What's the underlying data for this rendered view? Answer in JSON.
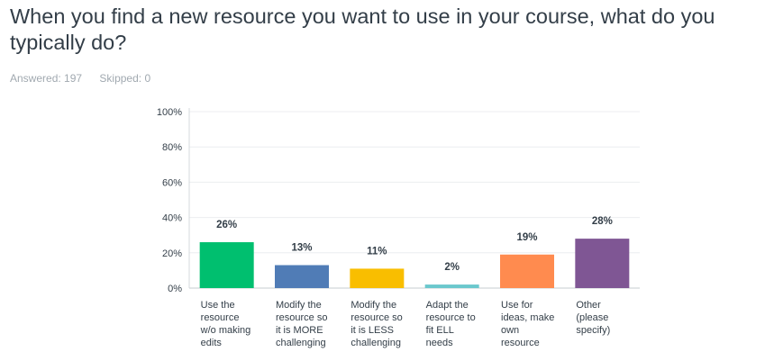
{
  "question": {
    "title": "When you find a new resource you want to use in your course, what do you typically do?",
    "answered": "Answered: 197",
    "skipped": "Skipped: 0"
  },
  "chart_data": {
    "type": "bar",
    "categories": [
      [
        "Use the",
        "resource",
        "w/o making",
        "edits"
      ],
      [
        "Modify the",
        "resource so",
        "it is MORE",
        "challenging"
      ],
      [
        "Modify the",
        "resource so",
        "it is LESS",
        "challenging"
      ],
      [
        "Adapt the",
        "resource to",
        "fit ELL",
        "needs"
      ],
      [
        "Use for",
        "ideas, make",
        "own",
        "resource"
      ],
      [
        "Other",
        "(please",
        "specify)"
      ]
    ],
    "values": [
      26,
      13,
      11,
      2,
      19,
      28
    ],
    "data_labels": [
      "26%",
      "13%",
      "11%",
      "2%",
      "19%",
      "28%"
    ],
    "colors": [
      "#00bf6f",
      "#507cb6",
      "#f9be00",
      "#6bc8cd",
      "#ff8b4f",
      "#7f5694"
    ],
    "ylim": [
      0,
      100
    ],
    "yticks": [
      "0%",
      "20%",
      "40%",
      "60%",
      "80%",
      "100%"
    ],
    "grid": true
  }
}
